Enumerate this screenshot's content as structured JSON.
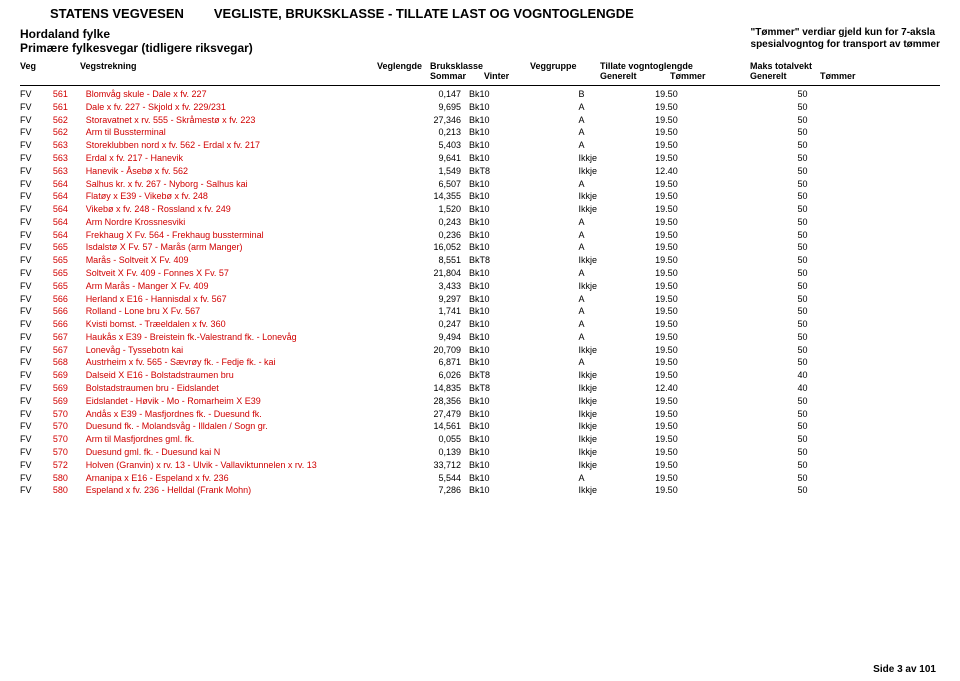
{
  "title_left": "STATENS VEGVESEN",
  "title_right": "VEGLISTE, BRUKSKLASSE - TILLATE LAST OG VOGNTOGLENGDE",
  "subtitle_l1": "Hordaland fylke",
  "subtitle_l2": "Primære fylkesvegar (tidligere riksvegar)",
  "subtitle_right_1": "\"Tømmer\" verdiar gjeld kun for 7-aksla",
  "subtitle_right_2": "spesialvogntog for transport av tømmer",
  "hdr": {
    "veg": "Veg",
    "strek": "Vegstrekning",
    "len": "Veglengde",
    "bk1": "Bruksklasse",
    "bk2a": "Sommar",
    "bk2b": "Vinter",
    "grp": "Veggruppe",
    "tvl1": "Tillate vogntoglengde",
    "tvl2a": "Generelt",
    "tvl2b": "Tømmer",
    "mtv1": "Maks totalvekt",
    "mtv2a": "Generelt",
    "mtv2b": "Tømmer"
  },
  "rows": [
    {
      "veg": "FV",
      "num": "561",
      "strek": "Blomvåg skule - Dale x fv. 227",
      "len": "0,147",
      "bk": "Bk10",
      "grp": "B",
      "tvl_g": "19.50",
      "mtv_g": "50"
    },
    {
      "veg": "FV",
      "num": "561",
      "strek": "Dale x fv. 227 - Skjold x fv. 229/231",
      "len": "9,695",
      "bk": "Bk10",
      "grp": "A",
      "tvl_g": "19.50",
      "mtv_g": "50"
    },
    {
      "veg": "FV",
      "num": "562",
      "strek": "Storavatnet x rv. 555 - Skråmestø x fv. 223",
      "len": "27,346",
      "bk": "Bk10",
      "grp": "A",
      "tvl_g": "19.50",
      "mtv_g": "50"
    },
    {
      "veg": "FV",
      "num": "562",
      "strek": "Arm til Bussterminal",
      "len": "0,213",
      "bk": "Bk10",
      "grp": "A",
      "tvl_g": "19.50",
      "mtv_g": "50"
    },
    {
      "veg": "FV",
      "num": "563",
      "strek": "Storeklubben nord x fv. 562 - Erdal x fv. 217",
      "len": "5,403",
      "bk": "Bk10",
      "grp": "A",
      "tvl_g": "19.50",
      "mtv_g": "50"
    },
    {
      "veg": "FV",
      "num": "563",
      "strek": "Erdal x fv. 217 - Hanevik",
      "len": "9,641",
      "bk": "Bk10",
      "grp": "Ikkje",
      "tvl_g": "19.50",
      "mtv_g": "50"
    },
    {
      "veg": "FV",
      "num": "563",
      "strek": "Hanevik - Åsebø x fv. 562",
      "len": "1,549",
      "bk": "BkT8",
      "grp": "Ikkje",
      "tvl_g": "12.40",
      "mtv_g": "50"
    },
    {
      "veg": "FV",
      "num": "564",
      "strek": "Salhus kr. x fv. 267 - Nyborg - Salhus kai",
      "len": "6,507",
      "bk": "Bk10",
      "grp": "A",
      "tvl_g": "19.50",
      "mtv_g": "50"
    },
    {
      "veg": "FV",
      "num": "564",
      "strek": "Flatøy x E39 - Vikebø x fv. 248",
      "len": "14,355",
      "bk": "Bk10",
      "grp": "Ikkje",
      "tvl_g": "19.50",
      "mtv_g": "50"
    },
    {
      "veg": "FV",
      "num": "564",
      "strek": "Vikebø x fv. 248 - Rossland x fv. 249",
      "len": "1,520",
      "bk": "Bk10",
      "grp": "Ikkje",
      "tvl_g": "19.50",
      "mtv_g": "50"
    },
    {
      "veg": "FV",
      "num": "564",
      "strek": "Arm Nordre Krossnesviki",
      "len": "0,243",
      "bk": "Bk10",
      "grp": "A",
      "tvl_g": "19.50",
      "mtv_g": "50"
    },
    {
      "veg": "FV",
      "num": "564",
      "strek": "Frekhaug X Fv. 564 - Frekhaug bussterminal",
      "len": "0,236",
      "bk": "Bk10",
      "grp": "A",
      "tvl_g": "19.50",
      "mtv_g": "50"
    },
    {
      "veg": "FV",
      "num": "565",
      "strek": "Isdalstø X Fv. 57 - Marås (arm Manger)",
      "len": "16,052",
      "bk": "Bk10",
      "grp": "A",
      "tvl_g": "19.50",
      "mtv_g": "50"
    },
    {
      "veg": "FV",
      "num": "565",
      "strek": "Marås - Soltveit X Fv. 409",
      "len": "8,551",
      "bk": "BkT8",
      "grp": "Ikkje",
      "tvl_g": "19.50",
      "mtv_g": "50"
    },
    {
      "veg": "FV",
      "num": "565",
      "strek": "Soltveit X Fv. 409 - Fonnes X Fv. 57",
      "len": "21,804",
      "bk": "Bk10",
      "grp": "A",
      "tvl_g": "19.50",
      "mtv_g": "50"
    },
    {
      "veg": "FV",
      "num": "565",
      "strek": "Arm Marås - Manger X Fv. 409",
      "len": "3,433",
      "bk": "Bk10",
      "grp": "Ikkje",
      "tvl_g": "19.50",
      "mtv_g": "50"
    },
    {
      "veg": "FV",
      "num": "566",
      "strek": "Herland x E16 - Hannisdal x fv. 567",
      "len": "9,297",
      "bk": "Bk10",
      "grp": "A",
      "tvl_g": "19.50",
      "mtv_g": "50"
    },
    {
      "veg": "FV",
      "num": "566",
      "strek": "Rolland - Lone bru X Fv. 567",
      "len": "1,741",
      "bk": "Bk10",
      "grp": "A",
      "tvl_g": "19.50",
      "mtv_g": "50"
    },
    {
      "veg": "FV",
      "num": "566",
      "strek": "Kvisti bomst. - Træeldalen x fv. 360",
      "len": "0,247",
      "bk": "Bk10",
      "grp": "A",
      "tvl_g": "19.50",
      "mtv_g": "50"
    },
    {
      "veg": "FV",
      "num": "567",
      "strek": "Haukås x E39 - Breistein fk.-Valestrand fk. - Lonevåg",
      "len": "9,494",
      "bk": "Bk10",
      "grp": "A",
      "tvl_g": "19.50",
      "mtv_g": "50"
    },
    {
      "veg": "FV",
      "num": "567",
      "strek": "Lonevåg - Tyssebotn kai",
      "len": "20,709",
      "bk": "Bk10",
      "grp": "Ikkje",
      "tvl_g": "19.50",
      "mtv_g": "50"
    },
    {
      "veg": "FV",
      "num": "568",
      "strek": "Austrheim x fv. 565 - Sævrøy fk. - Fedje fk. - kai",
      "len": "6,871",
      "bk": "Bk10",
      "grp": "A",
      "tvl_g": "19.50",
      "mtv_g": "50"
    },
    {
      "veg": "FV",
      "num": "569",
      "strek": "Dalseid X E16 - Bolstadstraumen bru",
      "len": "6,026",
      "bk": "BkT8",
      "grp": "Ikkje",
      "tvl_g": "19.50",
      "mtv_g": "40"
    },
    {
      "veg": "FV",
      "num": "569",
      "strek": "Bolstadstraumen bru - Eidslandet",
      "len": "14,835",
      "bk": "BkT8",
      "grp": "Ikkje",
      "tvl_g": "12.40",
      "mtv_g": "40"
    },
    {
      "veg": "FV",
      "num": "569",
      "strek": "Eidslandet - Høvik - Mo - Romarheim X E39",
      "len": "28,356",
      "bk": "Bk10",
      "grp": "Ikkje",
      "tvl_g": "19.50",
      "mtv_g": "50"
    },
    {
      "veg": "FV",
      "num": "570",
      "strek": "Andås x E39 - Masfjordnes fk. - Duesund fk.",
      "len": "27,479",
      "bk": "Bk10",
      "grp": "Ikkje",
      "tvl_g": "19.50",
      "mtv_g": "50"
    },
    {
      "veg": "FV",
      "num": "570",
      "strek": "Duesund fk. - Molandsvåg - Illdalen / Sogn gr.",
      "len": "14,561",
      "bk": "Bk10",
      "grp": "Ikkje",
      "tvl_g": "19.50",
      "mtv_g": "50"
    },
    {
      "veg": "FV",
      "num": "570",
      "strek": "Arm til Masfjordnes gml. fk.",
      "len": "0,055",
      "bk": "Bk10",
      "grp": "Ikkje",
      "tvl_g": "19.50",
      "mtv_g": "50"
    },
    {
      "veg": "FV",
      "num": "570",
      "strek": "Duesund gml. fk. - Duesund kai N",
      "len": "0,139",
      "bk": "Bk10",
      "grp": "Ikkje",
      "tvl_g": "19.50",
      "mtv_g": "50"
    },
    {
      "veg": "FV",
      "num": "572",
      "strek": "Holven (Granvin) x rv. 13 - Ulvik - Vallaviktunnelen x rv. 13",
      "len": "33,712",
      "bk": "Bk10",
      "grp": "Ikkje",
      "tvl_g": "19.50",
      "mtv_g": "50"
    },
    {
      "veg": "FV",
      "num": "580",
      "strek": "Arnanipa x E16 - Espeland x fv. 236",
      "len": "5,544",
      "bk": "Bk10",
      "grp": "A",
      "tvl_g": "19.50",
      "mtv_g": "50"
    },
    {
      "veg": "FV",
      "num": "580",
      "strek": "Espeland x fv. 236 - Helldal (Frank Mohn)",
      "len": "7,286",
      "bk": "Bk10",
      "grp": "Ikkje",
      "tvl_g": "19.50",
      "mtv_g": "50"
    }
  ],
  "footer": "Side 3 av 101",
  "colors": {
    "red": "#d00000",
    "black": "#000000",
    "bg": "#ffffff"
  }
}
